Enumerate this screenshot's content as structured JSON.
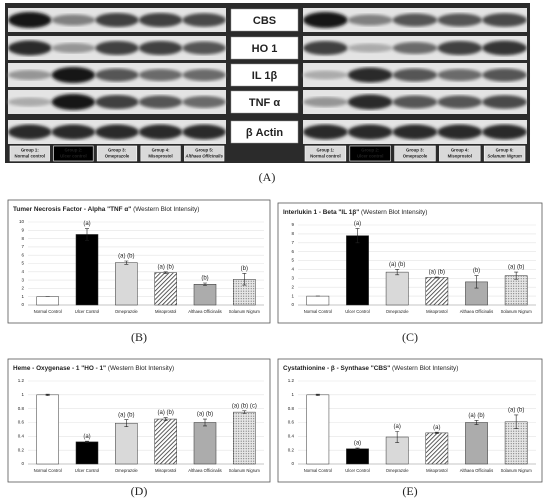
{
  "blot": {
    "proteins": [
      "CBS",
      "HO 1",
      "IL 1β",
      "TNF α",
      "β Actin"
    ],
    "left_groups": [
      {
        "group": "Group 1:",
        "name": "Normal control"
      },
      {
        "group": "Group 2:",
        "name": "Ulcer control"
      },
      {
        "group": "Group 3:",
        "name": "Omeprazole"
      },
      {
        "group": "Group 4:",
        "name": "Misoprostol"
      },
      {
        "group": "Group 5:",
        "name": "Althaea Officinalis"
      }
    ],
    "right_groups": [
      {
        "group": "Group 1:",
        "name": "Normal control"
      },
      {
        "group": "Group 2:",
        "name": "Ulcer control"
      },
      {
        "group": "Group 3:",
        "name": "Omeprazole"
      },
      {
        "group": "Group 4:",
        "name": "Misoprostol"
      },
      {
        "group": "Group 6:",
        "name": "Solanum Nigrum"
      }
    ],
    "panel_label": "(A)"
  },
  "chart_data": [
    {
      "type": "bar",
      "title": "Tumer Necrosis Factor - Alpha \"TNF α\"",
      "subtitle": " (Western Blot Intensity)",
      "panel_label": "(B)",
      "categories": [
        "Normal Control",
        "Ulcer Control",
        "Omeprazole",
        "Misoprostol",
        "Althaea Officinalis",
        "Solanum Nigrum"
      ],
      "values": [
        1,
        8.5,
        5.1,
        3.9,
        2.5,
        3.1
      ],
      "errors": [
        0,
        0.7,
        0.2,
        0.1,
        0.15,
        0.7
      ],
      "annotations": [
        null,
        "(a)",
        "(a) (b)",
        "(a) (b)",
        "(b)",
        "(b)"
      ],
      "fills": [
        "white",
        "black",
        "lightgray",
        "hatch",
        "gray",
        "dots"
      ],
      "ylim": [
        0,
        10
      ],
      "yticks": [
        0,
        1,
        2,
        3,
        4,
        5,
        6,
        7,
        8,
        9,
        10
      ],
      "grid": true
    },
    {
      "type": "bar",
      "title": "Interlukin 1 - Beta \"IL 1β\"",
      "subtitle": " (Western Blot Intensity)",
      "panel_label": "(C)",
      "categories": [
        "Normal Control",
        "Ulcer Control",
        "Omeprazole",
        "Misoprostol",
        "Althaea Officinalis",
        "Solanum Nigrum"
      ],
      "values": [
        1,
        7.8,
        3.7,
        3.1,
        2.6,
        3.3
      ],
      "errors": [
        0,
        0.8,
        0.3,
        0.05,
        0.7,
        0.4
      ],
      "annotations": [
        null,
        "(a)",
        "(a) (b)",
        "(a) (b)",
        "(b)",
        "(a) (b)"
      ],
      "fills": [
        "white",
        "black",
        "lightgray",
        "hatch",
        "gray",
        "dots"
      ],
      "ylim": [
        0,
        9
      ],
      "yticks": [
        0,
        1,
        2,
        3,
        4,
        5,
        6,
        7,
        8,
        9
      ],
      "grid": true
    },
    {
      "type": "bar",
      "title": "Heme - Oxygenase - 1 \"HO - 1\"",
      "subtitle": " (Western Blot Intensity)",
      "panel_label": "(D)",
      "categories": [
        "Normal Control",
        "Ulcer Control",
        "Omeprazole",
        "Misoprostol",
        "Althaea Officinalis",
        "Solanum Nigrum"
      ],
      "values": [
        1,
        0.32,
        0.59,
        0.65,
        0.6,
        0.75
      ],
      "errors": [
        0.01,
        0.01,
        0.05,
        0.02,
        0.05,
        0.02
      ],
      "annotations": [
        null,
        "(a)",
        "(a) (b)",
        "(a) (b)",
        "(a) (b)",
        "(a) (b) (c)"
      ],
      "fills": [
        "white",
        "black",
        "lightgray",
        "hatch",
        "gray",
        "dots"
      ],
      "ylim": [
        0,
        1.2
      ],
      "yticks": [
        0,
        0.2,
        0.4,
        0.6,
        0.8,
        1,
        1.2
      ],
      "grid": true
    },
    {
      "type": "bar",
      "title": "Cystathionine - β - Synthase \"CBS\"",
      "subtitle": " (Western Blot Intensity)",
      "panel_label": "(E)",
      "categories": [
        "Normal Control",
        "Ulcer Control",
        "Omeprazole",
        "Misoprostol",
        "Althaea Officinalis",
        "Solanum Nigrum"
      ],
      "values": [
        1,
        0.22,
        0.39,
        0.45,
        0.6,
        0.61
      ],
      "errors": [
        0.01,
        0.01,
        0.08,
        0.01,
        0.03,
        0.1
      ],
      "annotations": [
        null,
        "(a)",
        "(a)",
        "(a)",
        "(a) (b)",
        "(a) (b)"
      ],
      "fills": [
        "white",
        "black",
        "lightgray",
        "hatch",
        "gray",
        "dots"
      ],
      "ylim": [
        0,
        1.2
      ],
      "yticks": [
        0,
        0.2,
        0.4,
        0.6,
        0.8,
        1,
        1.2
      ],
      "grid": true
    }
  ]
}
